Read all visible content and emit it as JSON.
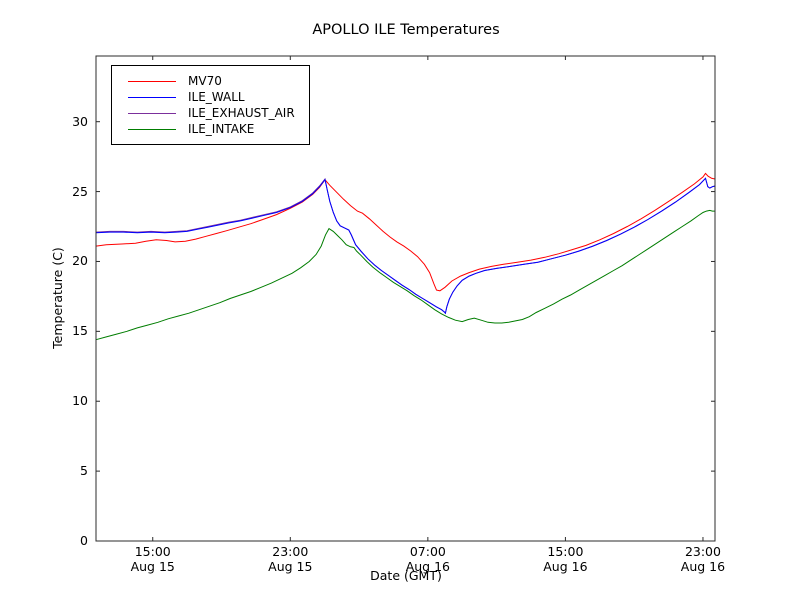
{
  "window": {
    "title": "APOLLO ILE Temperatures"
  },
  "chart_data": {
    "type": "line",
    "title": "APOLLO ILE Temperatures",
    "xlabel": "Date (GMT)",
    "ylabel": "Temperature (C)",
    "x_units": "hours since Aug 15 00:00 GMT",
    "xlim": [
      11.7,
      47.7
    ],
    "ylim": [
      0,
      34.7
    ],
    "grid": false,
    "legend_position": "upper left",
    "frame_color": "#2b2b2b",
    "yticks": [
      0,
      5,
      10,
      15,
      20,
      25,
      30
    ],
    "xticks": [
      {
        "t": 15,
        "time": "15:00",
        "date": "Aug 15"
      },
      {
        "t": 23,
        "time": "23:00",
        "date": "Aug 15"
      },
      {
        "t": 31,
        "time": "07:00",
        "date": "Aug 16"
      },
      {
        "t": 39,
        "time": "15:00",
        "date": "Aug 16"
      },
      {
        "t": 47,
        "time": "23:00",
        "date": "Aug 16"
      }
    ],
    "series": [
      {
        "name": "MV70",
        "color": "#ff0000",
        "points": [
          [
            11.7,
            21.1
          ],
          [
            12.3,
            21.2
          ],
          [
            13.2,
            21.25
          ],
          [
            14.0,
            21.3
          ],
          [
            14.6,
            21.45
          ],
          [
            15.2,
            21.55
          ],
          [
            15.8,
            21.5
          ],
          [
            16.3,
            21.4
          ],
          [
            16.9,
            21.45
          ],
          [
            17.5,
            21.6
          ],
          [
            18.1,
            21.8
          ],
          [
            18.7,
            22.0
          ],
          [
            19.3,
            22.2
          ],
          [
            20.0,
            22.45
          ],
          [
            20.7,
            22.7
          ],
          [
            21.4,
            23.0
          ],
          [
            22.2,
            23.35
          ],
          [
            23.0,
            23.8
          ],
          [
            23.7,
            24.25
          ],
          [
            24.3,
            24.8
          ],
          [
            24.7,
            25.3
          ],
          [
            25.02,
            25.85
          ],
          [
            25.3,
            25.45
          ],
          [
            25.7,
            24.95
          ],
          [
            26.1,
            24.45
          ],
          [
            26.5,
            24.0
          ],
          [
            26.9,
            23.6
          ],
          [
            27.2,
            23.45
          ],
          [
            27.6,
            23.05
          ],
          [
            28.0,
            22.6
          ],
          [
            28.4,
            22.15
          ],
          [
            28.8,
            21.75
          ],
          [
            29.2,
            21.4
          ],
          [
            29.6,
            21.1
          ],
          [
            30.0,
            20.75
          ],
          [
            30.4,
            20.35
          ],
          [
            30.8,
            19.8
          ],
          [
            31.1,
            19.2
          ],
          [
            31.35,
            18.4
          ],
          [
            31.5,
            17.95
          ],
          [
            31.7,
            17.9
          ],
          [
            32.0,
            18.15
          ],
          [
            32.4,
            18.6
          ],
          [
            32.9,
            18.95
          ],
          [
            33.4,
            19.2
          ],
          [
            34.0,
            19.45
          ],
          [
            34.7,
            19.65
          ],
          [
            35.4,
            19.8
          ],
          [
            36.2,
            19.95
          ],
          [
            37.0,
            20.1
          ],
          [
            37.8,
            20.3
          ],
          [
            38.6,
            20.55
          ],
          [
            39.4,
            20.85
          ],
          [
            40.2,
            21.15
          ],
          [
            41.0,
            21.55
          ],
          [
            41.8,
            22.0
          ],
          [
            42.6,
            22.5
          ],
          [
            43.4,
            23.05
          ],
          [
            44.2,
            23.65
          ],
          [
            45.0,
            24.3
          ],
          [
            45.8,
            24.95
          ],
          [
            46.5,
            25.55
          ],
          [
            47.0,
            26.05
          ],
          [
            47.15,
            26.3
          ],
          [
            47.3,
            26.1
          ],
          [
            47.5,
            25.95
          ],
          [
            47.7,
            25.9
          ]
        ]
      },
      {
        "name": "ILE_WALL",
        "color": "#0000ff",
        "points": [
          [
            11.7,
            22.05
          ],
          [
            12.5,
            22.1
          ],
          [
            13.3,
            22.1
          ],
          [
            14.1,
            22.05
          ],
          [
            14.9,
            22.1
          ],
          [
            15.7,
            22.05
          ],
          [
            16.4,
            22.1
          ],
          [
            17.0,
            22.15
          ],
          [
            17.6,
            22.3
          ],
          [
            18.2,
            22.45
          ],
          [
            18.8,
            22.6
          ],
          [
            19.4,
            22.75
          ],
          [
            20.1,
            22.9
          ],
          [
            20.8,
            23.1
          ],
          [
            21.5,
            23.3
          ],
          [
            22.2,
            23.5
          ],
          [
            23.0,
            23.85
          ],
          [
            23.7,
            24.3
          ],
          [
            24.3,
            24.85
          ],
          [
            24.7,
            25.35
          ],
          [
            25.02,
            25.85
          ],
          [
            25.15,
            25.1
          ],
          [
            25.3,
            24.3
          ],
          [
            25.5,
            23.5
          ],
          [
            25.7,
            22.9
          ],
          [
            25.9,
            22.55
          ],
          [
            26.15,
            22.4
          ],
          [
            26.4,
            22.25
          ],
          [
            26.55,
            21.9
          ],
          [
            26.8,
            21.2
          ],
          [
            27.1,
            20.75
          ],
          [
            27.5,
            20.2
          ],
          [
            27.9,
            19.75
          ],
          [
            28.3,
            19.35
          ],
          [
            28.7,
            19.0
          ],
          [
            29.1,
            18.65
          ],
          [
            29.5,
            18.3
          ],
          [
            29.9,
            18.0
          ],
          [
            30.3,
            17.65
          ],
          [
            30.7,
            17.35
          ],
          [
            31.1,
            17.05
          ],
          [
            31.5,
            16.75
          ],
          [
            31.8,
            16.55
          ],
          [
            31.95,
            16.4
          ],
          [
            32.02,
            16.3
          ],
          [
            32.1,
            16.75
          ],
          [
            32.25,
            17.3
          ],
          [
            32.45,
            17.8
          ],
          [
            32.7,
            18.25
          ],
          [
            33.0,
            18.65
          ],
          [
            33.4,
            18.95
          ],
          [
            33.8,
            19.15
          ],
          [
            34.3,
            19.35
          ],
          [
            35.0,
            19.5
          ],
          [
            35.8,
            19.65
          ],
          [
            36.6,
            19.8
          ],
          [
            37.4,
            19.95
          ],
          [
            38.2,
            20.2
          ],
          [
            39.0,
            20.45
          ],
          [
            39.8,
            20.75
          ],
          [
            40.6,
            21.1
          ],
          [
            41.4,
            21.5
          ],
          [
            42.2,
            21.95
          ],
          [
            43.0,
            22.45
          ],
          [
            43.8,
            23.0
          ],
          [
            44.6,
            23.6
          ],
          [
            45.4,
            24.25
          ],
          [
            46.2,
            24.95
          ],
          [
            46.8,
            25.5
          ],
          [
            47.15,
            25.95
          ],
          [
            47.28,
            25.35
          ],
          [
            47.4,
            25.25
          ],
          [
            47.55,
            25.35
          ],
          [
            47.7,
            25.4
          ]
        ]
      },
      {
        "name": "ILE_EXHAUST_AIR",
        "color": "#7b2f9c",
        "points": [
          [
            11.7,
            22.1
          ],
          [
            12.5,
            22.15
          ],
          [
            13.3,
            22.15
          ],
          [
            14.1,
            22.1
          ],
          [
            14.9,
            22.15
          ],
          [
            15.7,
            22.1
          ],
          [
            16.4,
            22.15
          ],
          [
            17.0,
            22.2
          ],
          [
            17.6,
            22.35
          ],
          [
            18.2,
            22.5
          ],
          [
            18.8,
            22.65
          ],
          [
            19.4,
            22.8
          ],
          [
            20.1,
            22.95
          ],
          [
            20.8,
            23.15
          ],
          [
            21.5,
            23.35
          ],
          [
            22.2,
            23.55
          ],
          [
            23.0,
            23.9
          ],
          [
            23.7,
            24.35
          ],
          [
            24.3,
            24.9
          ],
          [
            24.7,
            25.4
          ],
          [
            25.02,
            25.9
          ],
          [
            25.15,
            25.1
          ],
          [
            25.3,
            24.3
          ],
          [
            25.5,
            23.5
          ],
          [
            25.7,
            22.9
          ],
          [
            25.9,
            22.55
          ],
          [
            26.15,
            22.4
          ],
          [
            26.4,
            22.25
          ],
          [
            26.55,
            21.9
          ],
          [
            26.8,
            21.2
          ],
          [
            27.1,
            20.75
          ],
          [
            27.5,
            20.2
          ],
          [
            27.9,
            19.75
          ],
          [
            28.3,
            19.35
          ],
          [
            28.7,
            19.0
          ],
          [
            29.1,
            18.65
          ],
          [
            29.5,
            18.3
          ],
          [
            29.9,
            18.0
          ],
          [
            30.3,
            17.65
          ],
          [
            30.7,
            17.35
          ],
          [
            31.1,
            17.05
          ],
          [
            31.5,
            16.75
          ],
          [
            31.8,
            16.55
          ],
          [
            31.95,
            16.4
          ],
          [
            32.02,
            16.3
          ],
          [
            32.1,
            16.75
          ],
          [
            32.25,
            17.3
          ],
          [
            32.45,
            17.8
          ],
          [
            32.7,
            18.25
          ],
          [
            33.0,
            18.65
          ],
          [
            33.4,
            18.95
          ],
          [
            33.8,
            19.15
          ],
          [
            34.3,
            19.35
          ],
          [
            35.0,
            19.5
          ],
          [
            35.8,
            19.65
          ],
          [
            36.6,
            19.8
          ],
          [
            37.4,
            19.95
          ],
          [
            38.2,
            20.2
          ],
          [
            39.0,
            20.45
          ],
          [
            39.8,
            20.75
          ],
          [
            40.6,
            21.1
          ],
          [
            41.4,
            21.5
          ],
          [
            42.2,
            21.95
          ],
          [
            43.0,
            22.45
          ],
          [
            43.8,
            23.0
          ],
          [
            44.6,
            23.6
          ],
          [
            45.4,
            24.25
          ],
          [
            46.2,
            24.95
          ],
          [
            46.8,
            25.5
          ],
          [
            47.15,
            25.95
          ],
          [
            47.28,
            25.35
          ],
          [
            47.4,
            25.25
          ],
          [
            47.55,
            25.35
          ],
          [
            47.7,
            25.4
          ]
        ]
      },
      {
        "name": "ILE_INTAKE",
        "color": "#007d00",
        "points": [
          [
            11.7,
            14.4
          ],
          [
            12.3,
            14.6
          ],
          [
            12.9,
            14.8
          ],
          [
            13.5,
            15.0
          ],
          [
            14.1,
            15.25
          ],
          [
            14.7,
            15.45
          ],
          [
            15.3,
            15.65
          ],
          [
            15.9,
            15.9
          ],
          [
            16.5,
            16.1
          ],
          [
            17.1,
            16.3
          ],
          [
            17.7,
            16.55
          ],
          [
            18.3,
            16.8
          ],
          [
            18.9,
            17.05
          ],
          [
            19.5,
            17.35
          ],
          [
            20.1,
            17.6
          ],
          [
            20.7,
            17.85
          ],
          [
            21.3,
            18.15
          ],
          [
            21.9,
            18.45
          ],
          [
            22.5,
            18.8
          ],
          [
            23.1,
            19.15
          ],
          [
            23.6,
            19.55
          ],
          [
            24.1,
            20.0
          ],
          [
            24.5,
            20.5
          ],
          [
            24.8,
            21.1
          ],
          [
            25.05,
            21.9
          ],
          [
            25.25,
            22.35
          ],
          [
            25.5,
            22.15
          ],
          [
            25.75,
            21.85
          ],
          [
            26.0,
            21.55
          ],
          [
            26.25,
            21.2
          ],
          [
            26.5,
            21.05
          ],
          [
            26.7,
            21.0
          ],
          [
            26.85,
            20.75
          ],
          [
            27.1,
            20.45
          ],
          [
            27.45,
            20.0
          ],
          [
            27.8,
            19.6
          ],
          [
            28.2,
            19.2
          ],
          [
            28.6,
            18.85
          ],
          [
            29.0,
            18.5
          ],
          [
            29.4,
            18.2
          ],
          [
            29.8,
            17.9
          ],
          [
            30.2,
            17.55
          ],
          [
            30.6,
            17.25
          ],
          [
            31.0,
            16.9
          ],
          [
            31.4,
            16.55
          ],
          [
            31.8,
            16.25
          ],
          [
            32.2,
            16.0
          ],
          [
            32.6,
            15.8
          ],
          [
            33.0,
            15.7
          ],
          [
            33.35,
            15.85
          ],
          [
            33.7,
            15.95
          ],
          [
            34.1,
            15.8
          ],
          [
            34.5,
            15.65
          ],
          [
            34.9,
            15.6
          ],
          [
            35.3,
            15.6
          ],
          [
            35.7,
            15.65
          ],
          [
            36.1,
            15.75
          ],
          [
            36.5,
            15.85
          ],
          [
            36.9,
            16.05
          ],
          [
            37.3,
            16.35
          ],
          [
            37.8,
            16.65
          ],
          [
            38.3,
            16.95
          ],
          [
            38.8,
            17.3
          ],
          [
            39.3,
            17.6
          ],
          [
            39.8,
            17.95
          ],
          [
            40.3,
            18.3
          ],
          [
            40.8,
            18.65
          ],
          [
            41.3,
            19.0
          ],
          [
            41.8,
            19.35
          ],
          [
            42.3,
            19.7
          ],
          [
            42.8,
            20.1
          ],
          [
            43.3,
            20.5
          ],
          [
            43.8,
            20.9
          ],
          [
            44.3,
            21.3
          ],
          [
            44.8,
            21.7
          ],
          [
            45.3,
            22.1
          ],
          [
            45.8,
            22.5
          ],
          [
            46.3,
            22.9
          ],
          [
            46.7,
            23.25
          ],
          [
            47.0,
            23.5
          ],
          [
            47.2,
            23.6
          ],
          [
            47.4,
            23.65
          ],
          [
            47.55,
            23.6
          ],
          [
            47.7,
            23.6
          ]
        ]
      }
    ],
    "draw_order": [
      0,
      2,
      1,
      3
    ]
  }
}
